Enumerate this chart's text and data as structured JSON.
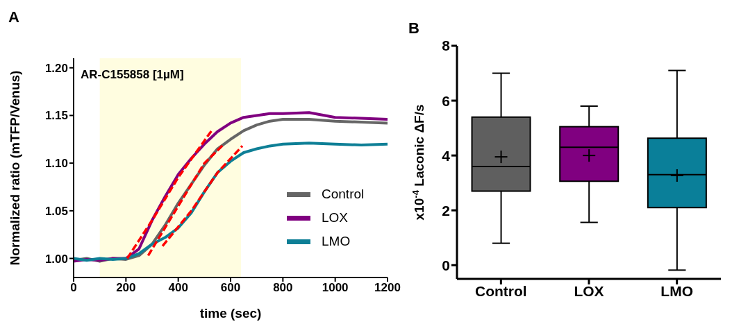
{
  "chart_data": [
    {
      "type": "line",
      "title": "A",
      "xlabel": "time (sec)",
      "ylabel": "Normalized ratio (mTFP/Venus)",
      "xlim": [
        0,
        1200
      ],
      "xticks": [
        0,
        200,
        400,
        600,
        800,
        1000,
        1200
      ],
      "ylim": [
        0.98,
        1.21
      ],
      "yticks": [
        {
          "value": 1,
          "label": "1.00"
        },
        1.05,
        {
          "value": 1.1,
          "label": "1.10"
        },
        1.15,
        {
          "value": 1.2,
          "label": "1.20"
        }
      ],
      "grid": false,
      "marker": "none",
      "legend": "bottom right",
      "bands": [
        {
          "axis": "x",
          "from": 100,
          "to": 640,
          "color": "#fffde0"
        }
      ],
      "annotations": [
        "AR-C155858 [1µM]"
      ],
      "series": [
        {
          "name": "Control",
          "color": "#666666",
          "x": [
            0,
            50,
            100,
            150,
            200,
            250,
            300,
            350,
            400,
            450,
            500,
            550,
            600,
            650,
            700,
            750,
            800,
            900,
            1000,
            1100,
            1200
          ],
          "values": [
            0.998,
            1.0,
            0.997,
            1.0,
            0.999,
            1.003,
            1.015,
            1.035,
            1.058,
            1.078,
            1.098,
            1.115,
            1.125,
            1.134,
            1.14,
            1.144,
            1.146,
            1.146,
            1.144,
            1.143,
            1.142
          ]
        },
        {
          "name": "LOX",
          "color": "#800080",
          "x": [
            0,
            50,
            100,
            150,
            200,
            250,
            300,
            350,
            400,
            450,
            500,
            550,
            600,
            650,
            700,
            750,
            800,
            900,
            1000,
            1100,
            1200
          ],
          "values": [
            0.997,
            0.999,
            0.998,
            1.0,
            1.0,
            1.01,
            1.04,
            1.065,
            1.088,
            1.105,
            1.12,
            1.133,
            1.142,
            1.148,
            1.15,
            1.152,
            1.152,
            1.153,
            1.148,
            1.147,
            1.146
          ]
        },
        {
          "name": "LMO",
          "color": "#0e7f96",
          "x": [
            0,
            50,
            100,
            150,
            200,
            250,
            300,
            350,
            400,
            450,
            500,
            550,
            600,
            650,
            700,
            750,
            800,
            900,
            1000,
            1100,
            1200
          ],
          "values": [
            1.0,
            0.998,
            1.0,
            0.999,
            1.0,
            1.005,
            1.015,
            1.022,
            1.032,
            1.048,
            1.07,
            1.09,
            1.102,
            1.111,
            1.115,
            1.118,
            1.12,
            1.121,
            1.12,
            1.119,
            1.12
          ]
        },
        {
          "type": "line",
          "color": "#ff0000",
          "line_style": "dashed",
          "x": [
            205,
            300,
            400,
            530
          ],
          "values": [
            1.0,
            1.04,
            1.085,
            1.135
          ]
        },
        {
          "type": "line",
          "color": "#ff0000",
          "line_style": "dashed",
          "x": [
            285,
            400,
            500,
            575
          ],
          "values": [
            1.003,
            1.055,
            1.1,
            1.12
          ]
        },
        {
          "type": "line",
          "color": "#ff0000",
          "line_style": "dashed",
          "x": [
            340,
            450,
            550,
            645
          ],
          "values": [
            1.013,
            1.05,
            1.09,
            1.118
          ]
        }
      ]
    },
    {
      "type": "box",
      "title": "B",
      "ylabel": "x10$^{-4}$ Laconic ΔF/s",
      "categories": [
        "Control",
        "LOX",
        "LMO"
      ],
      "ylim": [
        -0.5,
        8
      ],
      "yticks": [
        0,
        2,
        4,
        6,
        8
      ],
      "grid": false,
      "colors": [
        "#5f5f5f",
        "#800080",
        "#0a7f99"
      ],
      "boxes": [
        {
          "low": 0.8,
          "q1": 2.7,
          "median": 3.6,
          "q3": 5.4,
          "high": 7.0,
          "mean": 3.95
        },
        {
          "low": 1.56,
          "q1": 3.06,
          "median": 4.3,
          "q3": 5.05,
          "high": 5.8,
          "mean": 4.0
        },
        {
          "low": -0.18,
          "q1": 2.1,
          "median": 3.3,
          "q3": 4.63,
          "high": 7.1,
          "mean": 3.27
        }
      ]
    }
  ]
}
